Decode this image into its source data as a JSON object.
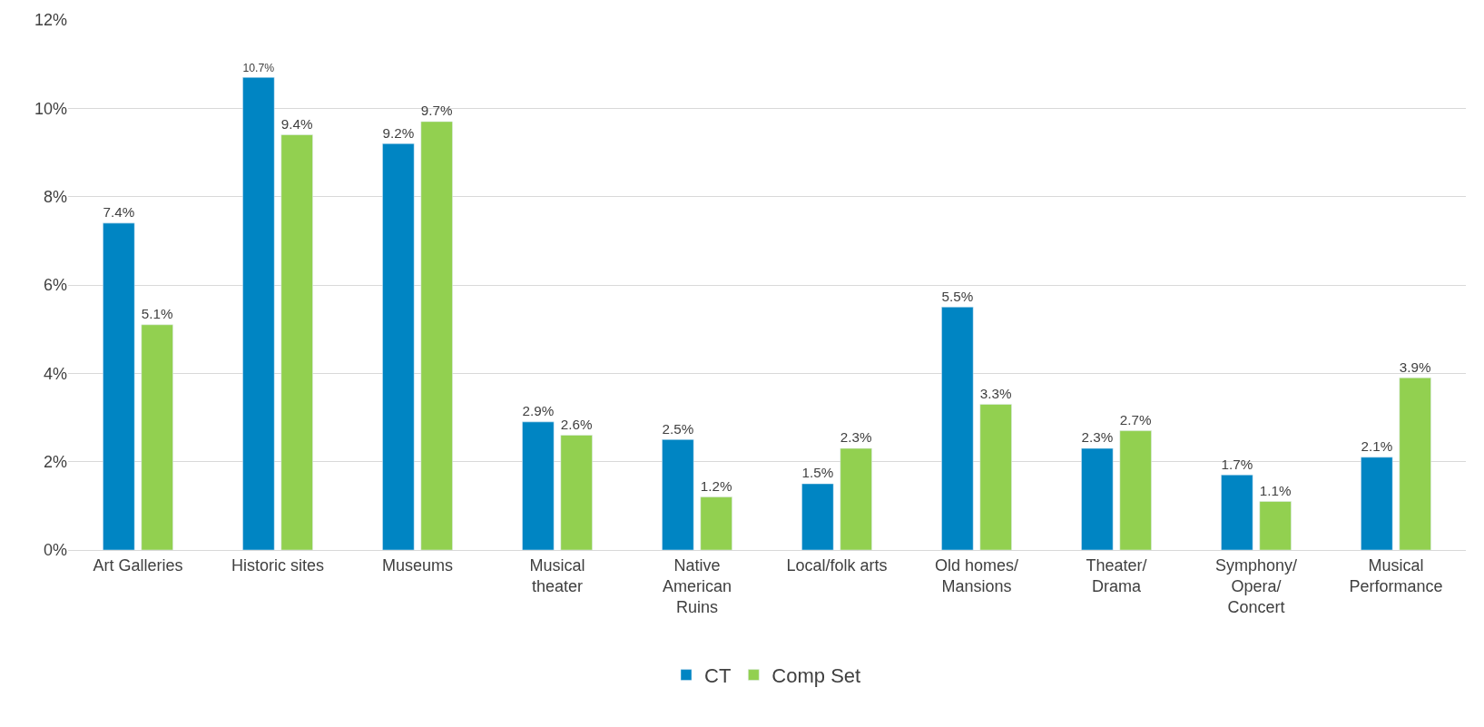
{
  "chart_data": {
    "type": "bar",
    "categories": [
      "Art Galleries",
      "Historic sites",
      "Museums",
      "Musical\ntheater",
      "Native\nAmerican\nRuins",
      "Local/folk arts",
      "Old homes/\nMansions",
      "Theater/\nDrama",
      "Symphony/\nOpera/\nConcert",
      "Musical\nPerformance"
    ],
    "series": [
      {
        "name": "CT",
        "color": "#0085c3",
        "values": [
          7.4,
          10.7,
          9.2,
          2.9,
          2.5,
          1.5,
          5.5,
          2.3,
          1.7,
          2.1
        ],
        "value_labels": [
          "7.4%",
          "10.7%",
          "9.2%",
          "2.9%",
          "2.5%",
          "1.5%",
          "5.5%",
          "2.3%",
          "1.7%",
          "2.1%"
        ]
      },
      {
        "name": "Comp Set",
        "color": "#92d050",
        "values": [
          5.1,
          9.4,
          9.7,
          2.6,
          1.2,
          2.3,
          3.3,
          2.7,
          1.1,
          3.9
        ],
        "value_labels": [
          "5.1%",
          "9.4%",
          "9.7%",
          "2.6%",
          "1.2%",
          "2.3%",
          "3.3%",
          "2.7%",
          "1.1%",
          "3.9%"
        ]
      }
    ],
    "ylim": [
      0,
      12
    ],
    "yticks": [
      {
        "value": 0,
        "label": "0%"
      },
      {
        "value": 2,
        "label": "2%"
      },
      {
        "value": 4,
        "label": "4%"
      },
      {
        "value": 6,
        "label": "6%"
      },
      {
        "value": 8,
        "label": "8%"
      },
      {
        "value": 10,
        "label": "10%"
      },
      {
        "value": 12,
        "label": "12%"
      }
    ],
    "grid": "y",
    "legend": "bottom"
  }
}
